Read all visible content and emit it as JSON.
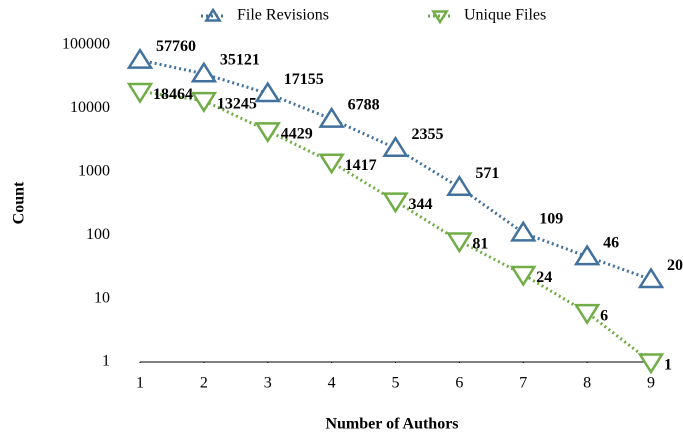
{
  "chart_data": {
    "type": "line",
    "x_label": "Number of Authors",
    "y_label": "Count",
    "x": [
      1,
      2,
      3,
      4,
      5,
      6,
      7,
      8,
      9
    ],
    "xlim": [
      1,
      9
    ],
    "xticks": [
      1,
      2,
      3,
      4,
      5,
      6,
      7,
      8,
      9
    ],
    "ylim": [
      1,
      100000
    ],
    "yticks": [
      1,
      10,
      100,
      1000,
      10000,
      100000
    ],
    "y_scale": "log",
    "grid": false,
    "legend_position": "top",
    "series": [
      {
        "name": "File Revisions",
        "color": "#41719c",
        "marker": "triangle-up",
        "values": [
          57760,
          35121,
          17155,
          6788,
          2355,
          571,
          109,
          46,
          20
        ]
      },
      {
        "name": "Unique Files",
        "color": "#70ad47",
        "marker": "triangle-down",
        "values": [
          18464,
          13245,
          4429,
          1417,
          344,
          81,
          24,
          6,
          1
        ]
      }
    ]
  }
}
